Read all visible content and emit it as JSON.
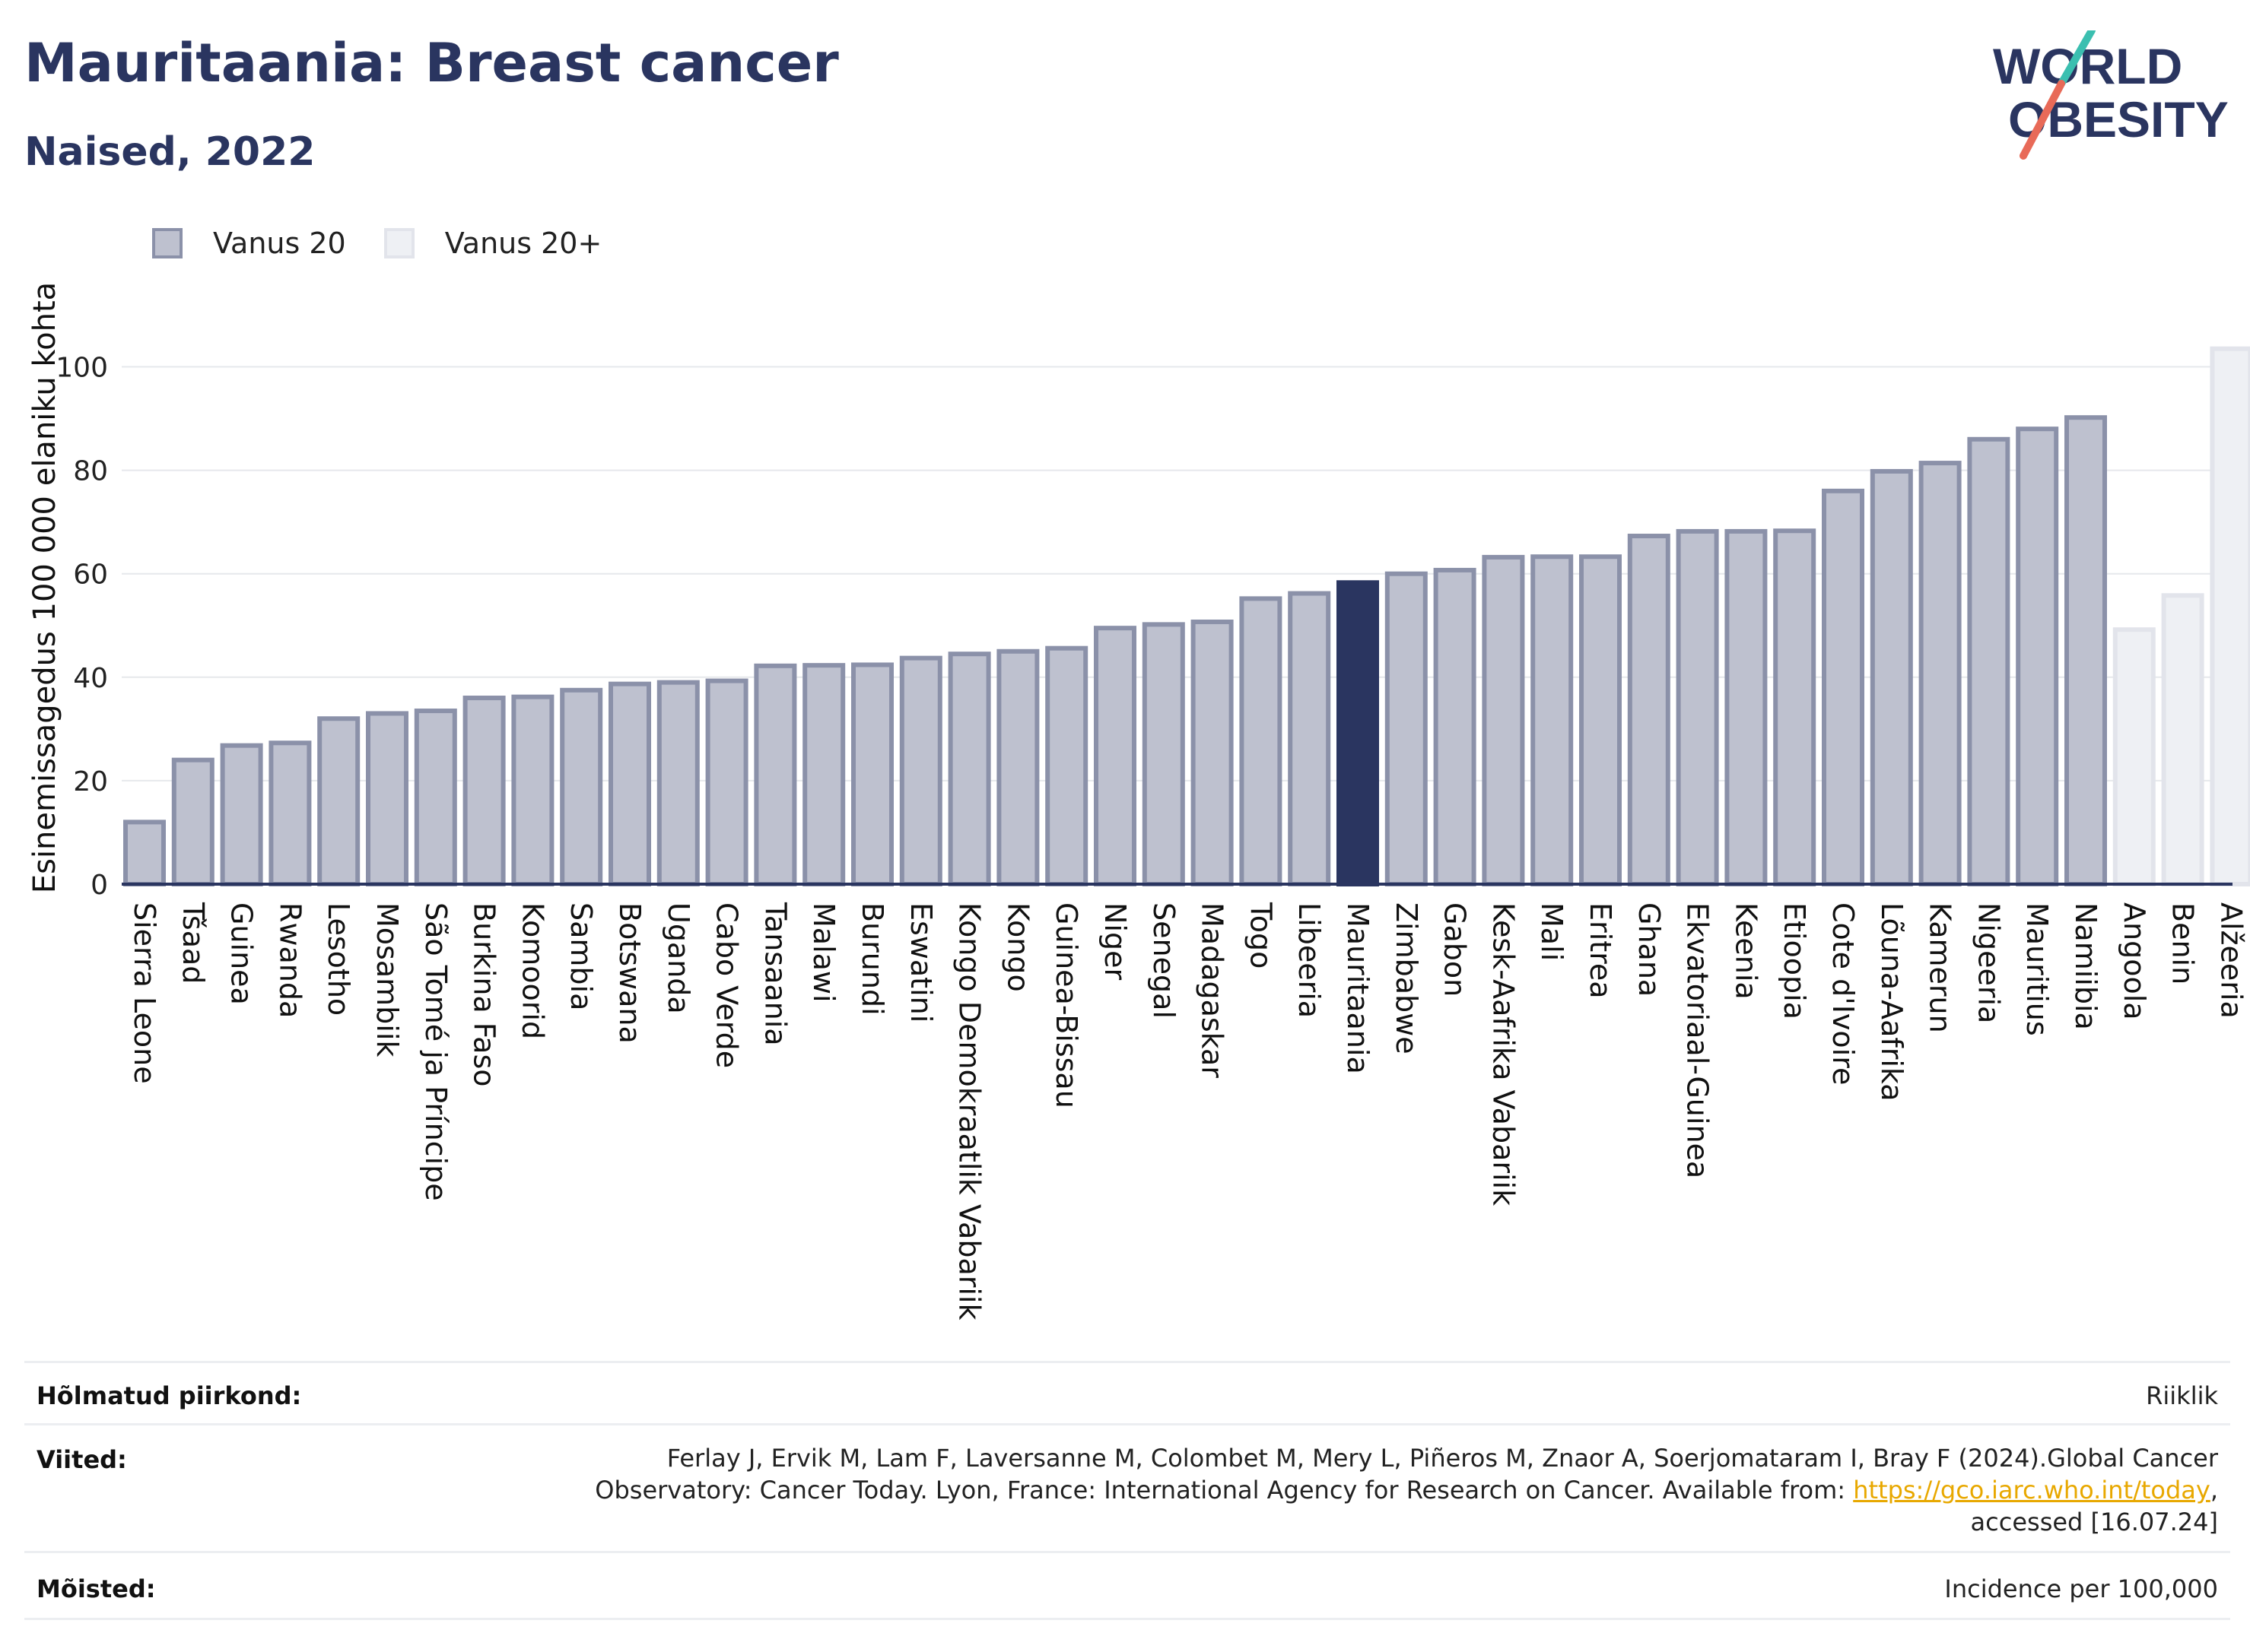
{
  "header": {
    "title": "Mauritaania: Breast cancer",
    "subtitle": "Naised, 2022",
    "logo_line1": "WORLD",
    "logo_line2": "OBESITY"
  },
  "legend": {
    "items": [
      {
        "label": "Vanus 20",
        "color": "#bec1cf"
      },
      {
        "label": "Vanus 20+",
        "color": "#eef0f4"
      }
    ]
  },
  "chart_data": {
    "type": "bar",
    "ylabel": "Esinemissagedus 100 000 elaniku kohta",
    "xlabel": "",
    "ylim": [
      0,
      110
    ],
    "yticks": [
      0,
      20,
      40,
      60,
      80,
      100
    ],
    "grid": true,
    "highlight": "Mauritaania",
    "highlight_color": "#2a3560",
    "series": [
      {
        "name": "Vanus 20",
        "color": "#bec1cf",
        "categories": [
          "Sierra Leone",
          "Tšaad",
          "Guinea",
          "Rwanda",
          "Lesotho",
          "Mosambiik",
          "São Tomé ja Príncipe",
          "Burkina Faso",
          "Komoorid",
          "Sambia",
          "Botswana",
          "Uganda",
          "Cabo Verde",
          "Tansaania",
          "Malawi",
          "Burundi",
          "Eswatini",
          "Kongo Demokraatlik Vabariik",
          "Kongo",
          "Guinea-Bissau",
          "Niger",
          "Senegal",
          "Madagaskar",
          "Togo",
          "Libeeria",
          "Mauritaania",
          "Zimbabwe",
          "Gabon",
          "Kesk-Aafrika Vabariik",
          "Mali",
          "Eritrea",
          "Ghana",
          "Ekvatoriaal-Guinea",
          "Keenia",
          "Etioopia",
          "Cote d'Ivoire",
          "Lõuna-Aafrika",
          "Kamerun",
          "Nigeeria",
          "Mauritius",
          "Namiibia"
        ],
        "values": [
          12.0,
          24.0,
          26.8,
          27.3,
          32.0,
          33.0,
          33.5,
          36.0,
          36.2,
          37.5,
          38.7,
          39.0,
          39.3,
          42.2,
          42.3,
          42.4,
          43.7,
          44.5,
          45.0,
          45.6,
          49.5,
          50.2,
          50.7,
          55.2,
          56.2,
          58.3,
          60.0,
          60.7,
          63.2,
          63.3,
          63.3,
          67.3,
          68.2,
          68.2,
          68.3,
          76.0,
          79.8,
          81.4,
          86.0,
          88.0,
          90.2
        ]
      },
      {
        "name": "Vanus 20+",
        "color": "#eef0f4",
        "categories": [
          "Angoola",
          "Benin",
          "Alžeeria"
        ],
        "values": [
          49.2,
          55.8,
          103.5
        ]
      }
    ]
  },
  "info": {
    "region_label": "Hõlmatud piirkond:",
    "region_value": "Riiklik",
    "refs_label": "Viited:",
    "refs_text1": "Ferlay J, Ervik M, Lam F, Laversanne M, Colombet M, Mery L, Piñeros M, Znaor A, Soerjomataram I, Bray F (2024).Global Cancer",
    "refs_text2": "Observatory: Cancer Today. Lyon, France: International Agency for Research on Cancer. Available from: ",
    "refs_link": "https://gco.iarc.who.int/today",
    "refs_text3": ",",
    "refs_text4": "accessed [16.07.24]",
    "defs_label": "Mõisted:",
    "defs_value": "Incidence per 100,000"
  }
}
